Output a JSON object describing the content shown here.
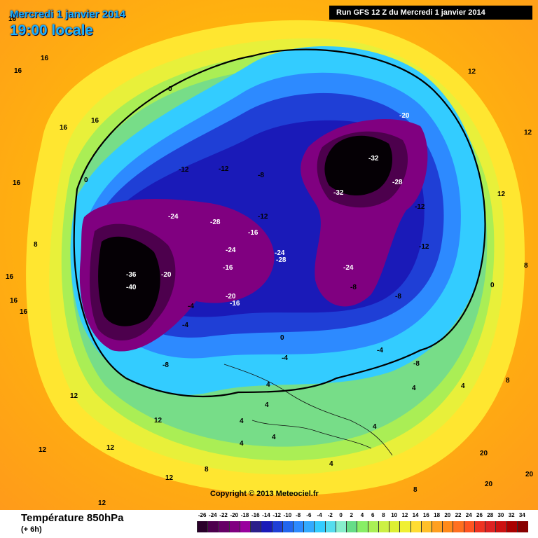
{
  "header": {
    "date": "Mercredi 1 janvier 2014",
    "time": "19:00 locale",
    "run": "Run GFS 12 Z du Mercredi 1 janvier 2014"
  },
  "copyright": "Copyright © 2013 Meteociel.fr",
  "legend": {
    "title": "Température 850hPa",
    "subtitle": "(+ 6h)",
    "values": [
      "-26",
      "-24",
      "-22",
      "-20",
      "-18",
      "-16",
      "-14",
      "-12",
      "-10",
      "-8",
      "-6",
      "-4",
      "-2",
      "0",
      "2",
      "4",
      "6",
      "8",
      "10",
      "12",
      "14",
      "16",
      "18",
      "20",
      "22",
      "24",
      "26",
      "28",
      "30",
      "32",
      "34"
    ],
    "colors": [
      "#2a002a",
      "#4d004d",
      "#660066",
      "#800080",
      "#99009e",
      "#2b1f8a",
      "#1a1ab8",
      "#1f3fd6",
      "#2266ee",
      "#2d8aff",
      "#33aaff",
      "#33ccff",
      "#55ddee",
      "#88eecc",
      "#66dd88",
      "#88ee66",
      "#aaf055",
      "#ccf044",
      "#ddf033",
      "#f0f033",
      "#ffdd33",
      "#ffc02a",
      "#ffa020",
      "#ff8a1a",
      "#ff7020",
      "#ff5522",
      "#ee3322",
      "#dd2222",
      "#cc1111",
      "#aa0000",
      "#880000"
    ]
  },
  "map_labels": [
    "16",
    "16",
    "16",
    "16",
    "16",
    "16",
    "16",
    "16",
    "16",
    "12",
    "12",
    "12",
    "12",
    "12",
    "12",
    "12",
    "12",
    "12",
    "8",
    "8",
    "8",
    "8",
    "8",
    "4",
    "4",
    "4",
    "4",
    "4",
    "4",
    "4",
    "4",
    "4",
    "0",
    "0",
    "0",
    "0",
    "-4",
    "-4",
    "-4",
    "-4",
    "-8",
    "-8",
    "-8",
    "-8",
    "-8",
    "-12",
    "-12",
    "-12",
    "-12",
    "-12",
    "-16",
    "-16",
    "-16",
    "-20",
    "-20",
    "-20",
    "-24",
    "-24",
    "-24",
    "-24",
    "-28",
    "-28",
    "-28",
    "-32",
    "-32",
    "-36",
    "-40",
    "20",
    "20",
    "20"
  ]
}
